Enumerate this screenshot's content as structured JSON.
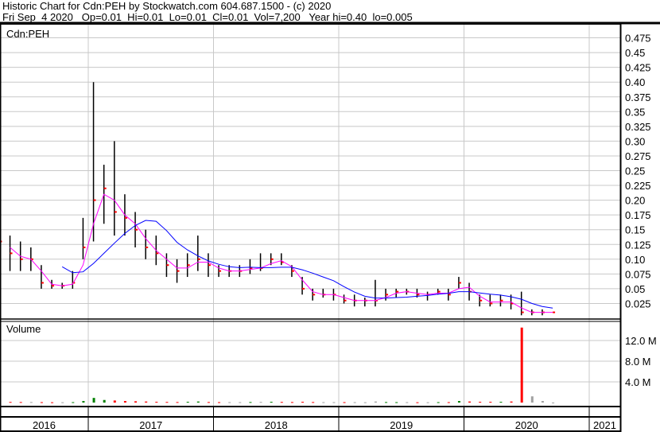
{
  "header": {
    "title": "Historic Chart for Cdn:PEH by Stockwatch.com 604.687.1500 - (c) 2020",
    "quote": "Fri Sep  4 2020   Op=0.01  Hi=0.01  Lo=0.01  Cl=0.01  Vol=7,200   Year hi=0.40  lo=0.005"
  },
  "chart_data": [
    {
      "type": "bar",
      "subtype": "ohlc-price",
      "title": "Cdn:PEH",
      "ylim": [
        0,
        0.5
      ],
      "yticks": [
        "0.025",
        "0.05",
        "0.075",
        "0.10",
        "0.125",
        "0.15",
        "0.175",
        "0.20",
        "0.225",
        "0.25",
        "0.275",
        "0.30",
        "0.325",
        "0.35",
        "0.375",
        "0.40",
        "0.425",
        "0.45",
        "0.475"
      ],
      "xticks": [
        "2016",
        "2017",
        "2018",
        "2019",
        "2020",
        "2021"
      ],
      "grid": true,
      "colors": {
        "bars": "#000000",
        "close_marker": "#ff0000",
        "short_ma": "#ff00ff",
        "long_ma": "#0000ff"
      },
      "dates": [
        "2016-04",
        "2016-05",
        "2016-06",
        "2016-07",
        "2016-08",
        "2016-09",
        "2016-10",
        "2016-11",
        "2016-12",
        "2017-01",
        "2017-02",
        "2017-03",
        "2017-04",
        "2017-05",
        "2017-06",
        "2017-07",
        "2017-08",
        "2017-09",
        "2017-10",
        "2017-11",
        "2017-12",
        "2018-01",
        "2018-02",
        "2018-03",
        "2018-04",
        "2018-05",
        "2018-06",
        "2018-07",
        "2018-08",
        "2018-09",
        "2018-10",
        "2018-11",
        "2018-12",
        "2019-01",
        "2019-02",
        "2019-03",
        "2019-04",
        "2019-05",
        "2019-06",
        "2019-07",
        "2019-08",
        "2019-09",
        "2019-10",
        "2019-11",
        "2019-12",
        "2020-01",
        "2020-02",
        "2020-03",
        "2020-04",
        "2020-05",
        "2020-06",
        "2020-07",
        "2020-08",
        "2020-09"
      ],
      "high": [
        0.15,
        0.14,
        0.13,
        0.12,
        0.09,
        0.065,
        0.06,
        0.08,
        0.17,
        0.4,
        0.26,
        0.3,
        0.21,
        0.18,
        0.15,
        0.14,
        0.11,
        0.1,
        0.11,
        0.14,
        0.11,
        0.09,
        0.09,
        0.09,
        0.1,
        0.11,
        0.11,
        0.11,
        0.09,
        0.07,
        0.05,
        0.05,
        0.05,
        0.04,
        0.04,
        0.035,
        0.065,
        0.05,
        0.05,
        0.05,
        0.05,
        0.045,
        0.05,
        0.05,
        0.07,
        0.06,
        0.04,
        0.04,
        0.04,
        0.04,
        0.045,
        0.015,
        0.015,
        0.01
      ],
      "low": [
        0.1,
        0.08,
        0.08,
        0.08,
        0.05,
        0.05,
        0.05,
        0.05,
        0.1,
        0.13,
        0.16,
        0.14,
        0.14,
        0.12,
        0.1,
        0.09,
        0.07,
        0.06,
        0.07,
        0.08,
        0.07,
        0.07,
        0.07,
        0.07,
        0.075,
        0.08,
        0.09,
        0.09,
        0.07,
        0.04,
        0.03,
        0.035,
        0.03,
        0.025,
        0.02,
        0.02,
        0.02,
        0.03,
        0.035,
        0.04,
        0.035,
        0.03,
        0.04,
        0.03,
        0.05,
        0.03,
        0.02,
        0.02,
        0.02,
        0.015,
        0.005,
        0.005,
        0.005,
        0.01
      ],
      "close": [
        0.13,
        0.11,
        0.1,
        0.1,
        0.06,
        0.055,
        0.055,
        0.06,
        0.12,
        0.2,
        0.22,
        0.18,
        0.17,
        0.15,
        0.12,
        0.11,
        0.09,
        0.08,
        0.09,
        0.1,
        0.09,
        0.08,
        0.08,
        0.08,
        0.085,
        0.085,
        0.1,
        0.095,
        0.08,
        0.05,
        0.04,
        0.04,
        0.04,
        0.03,
        0.03,
        0.03,
        0.03,
        0.04,
        0.045,
        0.045,
        0.04,
        0.04,
        0.045,
        0.04,
        0.06,
        0.045,
        0.03,
        0.025,
        0.03,
        0.025,
        0.01,
        0.01,
        0.01,
        0.01
      ]
    },
    {
      "type": "bar",
      "subtype": "volume",
      "title": "Volume",
      "ylim": [
        0,
        16000000
      ],
      "yticks": [
        "4.0 M",
        "8.0 M",
        "12.0 M"
      ],
      "grid": true,
      "colors": {
        "up": "#008000",
        "down": "#ff0000",
        "flat": "#a0a0a0"
      },
      "values": [
        150000,
        120000,
        100000,
        100000,
        80000,
        60000,
        60000,
        80000,
        300000,
        900000,
        500000,
        400000,
        300000,
        250000,
        200000,
        150000,
        120000,
        100000,
        150000,
        200000,
        100000,
        80000,
        80000,
        80000,
        100000,
        120000,
        150000,
        120000,
        100000,
        150000,
        100000,
        80000,
        80000,
        80000,
        80000,
        60000,
        200000,
        100000,
        80000,
        80000,
        60000,
        60000,
        80000,
        80000,
        300000,
        200000,
        150000,
        150000,
        150000,
        200000,
        14500000,
        1200000,
        300000,
        7200
      ]
    }
  ]
}
